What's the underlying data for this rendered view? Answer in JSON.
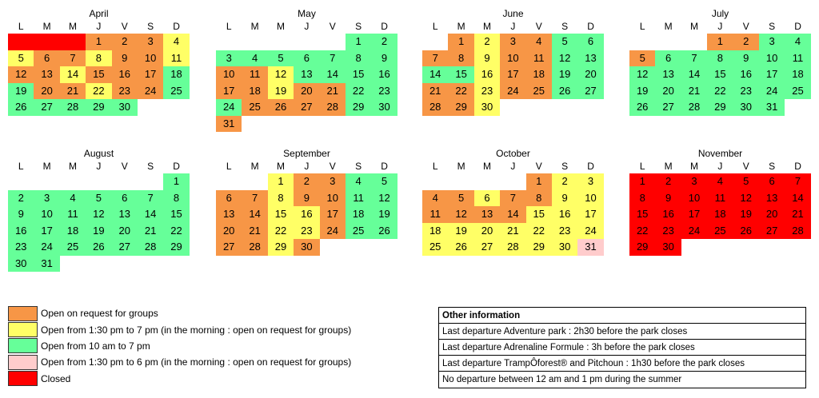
{
  "colors": {
    "O": "#f79646",
    "Y": "#ffff66",
    "G": "#66ff99",
    "P": "#ffcccc",
    "R": "#ff0000",
    "W": "#ffffff"
  },
  "weekdays": [
    "L",
    "M",
    "M",
    "J",
    "V",
    "S",
    "D"
  ],
  "months": [
    {
      "name": "April",
      "offset": 0,
      "lead": [
        "R",
        "R",
        "R"
      ],
      "days": "OOOYYOOYOOYOOYOOOGGOOYOOGGGGGG"
    },
    {
      "name": "May",
      "offset": 5,
      "lead": [],
      "days": "GGGGGGGGGOOYGGGGOOYOOGGGOOOOGGO"
    },
    {
      "name": "June",
      "offset": 1,
      "lead": [],
      "days": "OYOOGGOOYOOGGGGYOOGGOOYOOGGOOY"
    },
    {
      "name": "July",
      "offset": 3,
      "lead": [],
      "days": "OOGGOGGGGGGGGGGGGGGGGGGGGGGGGGG"
    },
    {
      "name": "August",
      "offset": 6,
      "lead": [],
      "days": "GGGGGGGGGGGGGGGGGGGGGGGGGGGGGGG"
    },
    {
      "name": "September",
      "offset": 2,
      "lead": [],
      "days": "YOOGGOOYOOGGOOYYOGGOOYYOGGOOYO"
    },
    {
      "name": "October",
      "offset": 4,
      "lead": [],
      "days": "OYYOOYOOYYOOOOYYYYYYYYYYYYYYYYP"
    },
    {
      "name": "November",
      "offset": 0,
      "lead": [],
      "days": "RRRRRRRRRRRRRRRRRRRRRRRRRRRRRR"
    }
  ],
  "legend": [
    {
      "color": "#f79646",
      "label": "Open on request for groups"
    },
    {
      "color": "#ffff66",
      "label": "Open from 1:30 pm to 7 pm (in the morning : open on request for groups)"
    },
    {
      "color": "#66ff99",
      "label": "Open from 10 am to 7 pm"
    },
    {
      "color": "#ffcccc",
      "label": "Open from 1:30 pm to 6 pm (in the morning : open on request for groups)"
    },
    {
      "color": "#ff0000",
      "label": "Closed"
    }
  ],
  "info": {
    "title": "Other information",
    "rows": [
      "Last departure Adventure park : 2h30 before the park closes",
      "Last departure Adrenaline Formule : 3h before the park closes",
      "Last departure TrampÔforest® and Pitchoun : 1h30 before the park closes",
      "No departure between 12 am and 1 pm during the summer"
    ]
  }
}
